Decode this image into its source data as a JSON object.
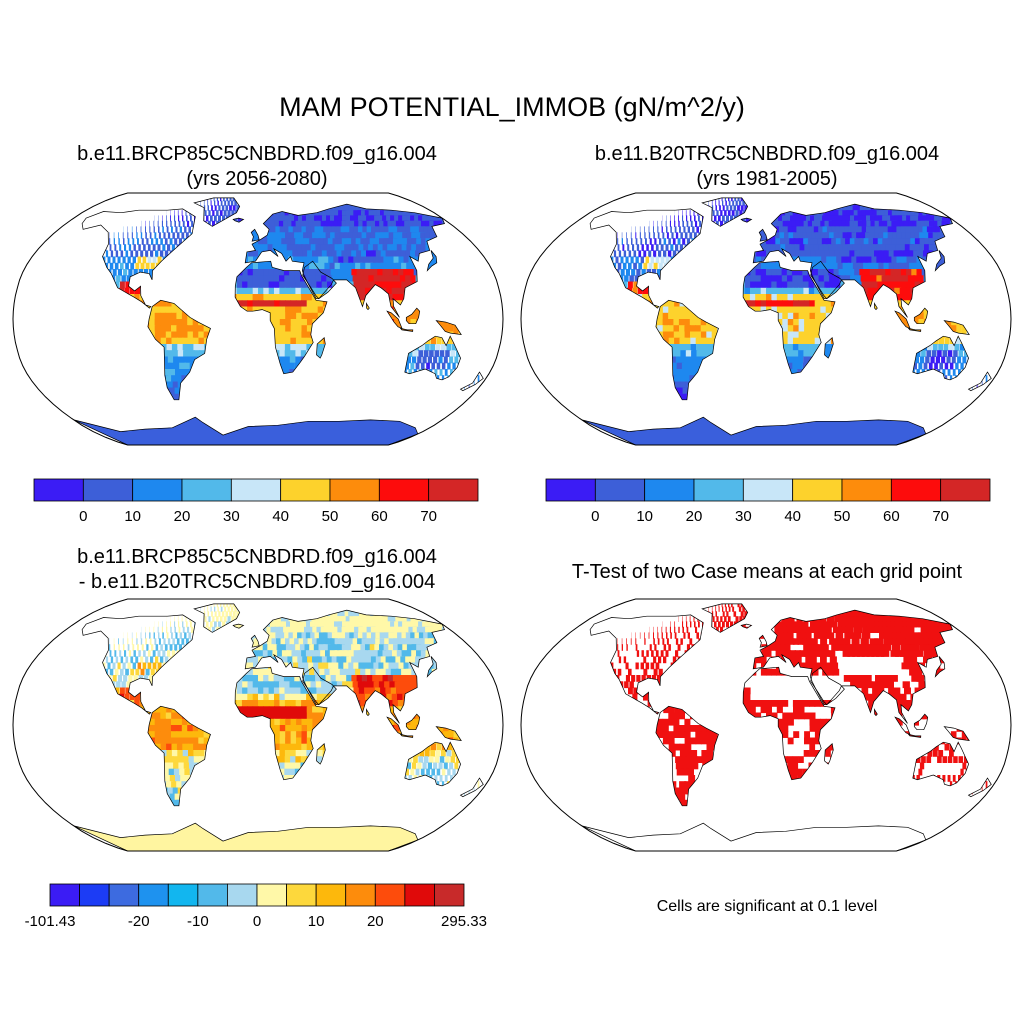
{
  "title": "MAM POTENTIAL_IMMOB (gN/m^2/y)",
  "panels": [
    {
      "id": "case1",
      "title_line1": "b.e11.BRCP85C5CNBDRD.f09_g16.004",
      "title_line2": "(yrs 2056-2080)"
    },
    {
      "id": "case2",
      "title_line1": "b.e11.B20TRC5CNBDRD.f09_g16.004",
      "title_line2": "(yrs 1981-2005)"
    },
    {
      "id": "diff",
      "title_line1": "b.e11.BRCP85C5CNBDRD.f09_g16.004",
      "title_line2": "- b.e11.B20TRC5CNBDRD.f09_g16.004"
    },
    {
      "id": "ttest",
      "title_line1": "T-Test of two Case means at each grid point",
      "note": "Cells are significant at 0.1 level"
    }
  ],
  "colorbar_main": {
    "colors": [
      "#3b1cf5",
      "#3d5fd8",
      "#1e88ef",
      "#52b9ea",
      "#c8e6f8",
      "#fdd22c",
      "#fd8c0c",
      "#fd0c0c",
      "#d42626"
    ],
    "labels": [
      "0",
      "10",
      "20",
      "30",
      "40",
      "50",
      "60",
      "70"
    ]
  },
  "colorbar_diff": {
    "colors": [
      "#3b1cf5",
      "#1c3cf5",
      "#3d6be0",
      "#1e92ef",
      "#12b6ef",
      "#52b9ea",
      "#a8d8ef",
      "#fff8a8",
      "#fdd83c",
      "#fdb80c",
      "#fd8c0c",
      "#fd4c0c",
      "#e00a0a",
      "#c82a2a"
    ],
    "labels": [
      "-101.43",
      "-20",
      "-10",
      "0",
      "10",
      "20",
      "295.33"
    ]
  },
  "map_colors": {
    "ocean": "#ffffff",
    "coast": "#000000",
    "significant": "#f01010",
    "antarctica_main": "#3a5fdc",
    "antarctica_diff": "#fff5a0"
  }
}
